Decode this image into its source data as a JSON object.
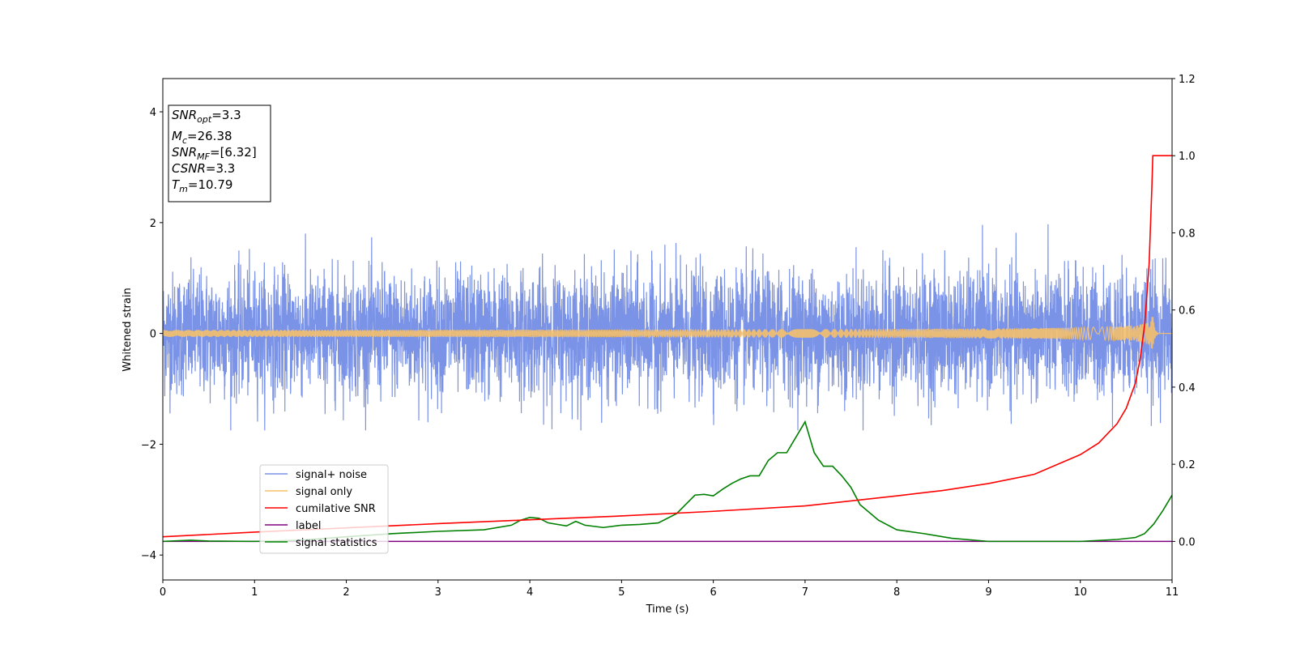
{
  "chart_data": {
    "type": "line",
    "xlabel": "Time (s)",
    "ylabel": "Whitened strain",
    "xlim": [
      0,
      11
    ],
    "ylim_left": [
      -4.45,
      4.6
    ],
    "ylim_right": [
      -0.1,
      1.2
    ],
    "x_ticks": [
      "0",
      "1",
      "2",
      "3",
      "4",
      "5",
      "6",
      "7",
      "8",
      "9",
      "10",
      "11"
    ],
    "y_left_ticks": [
      "4",
      "2",
      "0",
      "−2",
      "−4"
    ],
    "y_right_ticks": [
      "1.2",
      "1.0",
      "0.8",
      "0.6",
      "0.4",
      "0.2",
      "0.0"
    ],
    "colors": {
      "signal_noise": "#7b93e6",
      "signal_only": "#f5c06b",
      "cumulative_snr": "#ff0000",
      "label": "#800080",
      "signal_statistics": "#008000"
    },
    "legend": {
      "placement": "lower-left",
      "entries": [
        "signal+ noise",
        "signal only",
        "cumilative SNR",
        "label",
        "signal statistics"
      ]
    },
    "annotation": {
      "lines": [
        {
          "var": "SNR",
          "sub": "opt",
          "value": "=3.3"
        },
        {
          "var": "M",
          "sub": "c",
          "value": "=26.38"
        },
        {
          "var": "SNR",
          "sub": "MF",
          "value": "=[6.32]"
        },
        {
          "var": "CSNR",
          "sub": "",
          "value": "=3.3"
        },
        {
          "var": "T",
          "sub": "m",
          "value": "=10.79"
        }
      ]
    },
    "series": [
      {
        "name": "signal+ noise",
        "axis": "left",
        "description_values": {
          "mean": 0.0,
          "std": 0.55,
          "min": -1.75,
          "max": 2.05
        }
      },
      {
        "name": "signal only",
        "axis": "left",
        "chirp": {
          "t_merge": 10.79,
          "peak_amplitude": 0.4
        }
      },
      {
        "name": "cumilative SNR",
        "axis": "right",
        "x": [
          0,
          1,
          2,
          3,
          4,
          5,
          6,
          7,
          8,
          8.5,
          9,
          9.5,
          10,
          10.2,
          10.4,
          10.5,
          10.6,
          10.65,
          10.7,
          10.72,
          10.75,
          10.78,
          10.79,
          11
        ],
        "y": [
          0.012,
          0.024,
          0.035,
          0.046,
          0.056,
          0.066,
          0.078,
          0.092,
          0.118,
          0.132,
          0.15,
          0.174,
          0.225,
          0.255,
          0.305,
          0.345,
          0.41,
          0.47,
          0.56,
          0.62,
          0.72,
          0.92,
          1.0,
          1.0
        ]
      },
      {
        "name": "label",
        "axis": "right",
        "x": [
          0,
          11
        ],
        "y": [
          0.0,
          0.0
        ]
      },
      {
        "name": "signal statistics",
        "axis": "right",
        "x": [
          0,
          0.3,
          0.5,
          1,
          1.5,
          2,
          2.5,
          3,
          3.5,
          3.8,
          3.9,
          4.0,
          4.1,
          4.2,
          4.4,
          4.5,
          4.6,
          4.8,
          5,
          5.2,
          5.4,
          5.6,
          5.8,
          5.9,
          6.0,
          6.1,
          6.2,
          6.3,
          6.4,
          6.5,
          6.6,
          6.7,
          6.8,
          6.9,
          7.0,
          7.1,
          7.2,
          7.3,
          7.4,
          7.5,
          7.6,
          7.8,
          8.0,
          8.3,
          8.6,
          9.0,
          9.5,
          10.0,
          10.4,
          10.6,
          10.7,
          10.8,
          10.9,
          11.0
        ],
        "y": [
          0.0,
          0.003,
          0.001,
          0.0,
          0.003,
          0.012,
          0.02,
          0.026,
          0.03,
          0.042,
          0.055,
          0.062,
          0.06,
          0.048,
          0.04,
          0.052,
          0.042,
          0.036,
          0.042,
          0.044,
          0.048,
          0.072,
          0.12,
          0.122,
          0.118,
          0.135,
          0.15,
          0.162,
          0.17,
          0.17,
          0.21,
          0.23,
          0.23,
          0.27,
          0.31,
          0.23,
          0.195,
          0.195,
          0.17,
          0.14,
          0.095,
          0.055,
          0.03,
          0.02,
          0.008,
          0.0,
          0.0,
          0.0,
          0.005,
          0.01,
          0.02,
          0.045,
          0.08,
          0.12
        ]
      }
    ]
  }
}
